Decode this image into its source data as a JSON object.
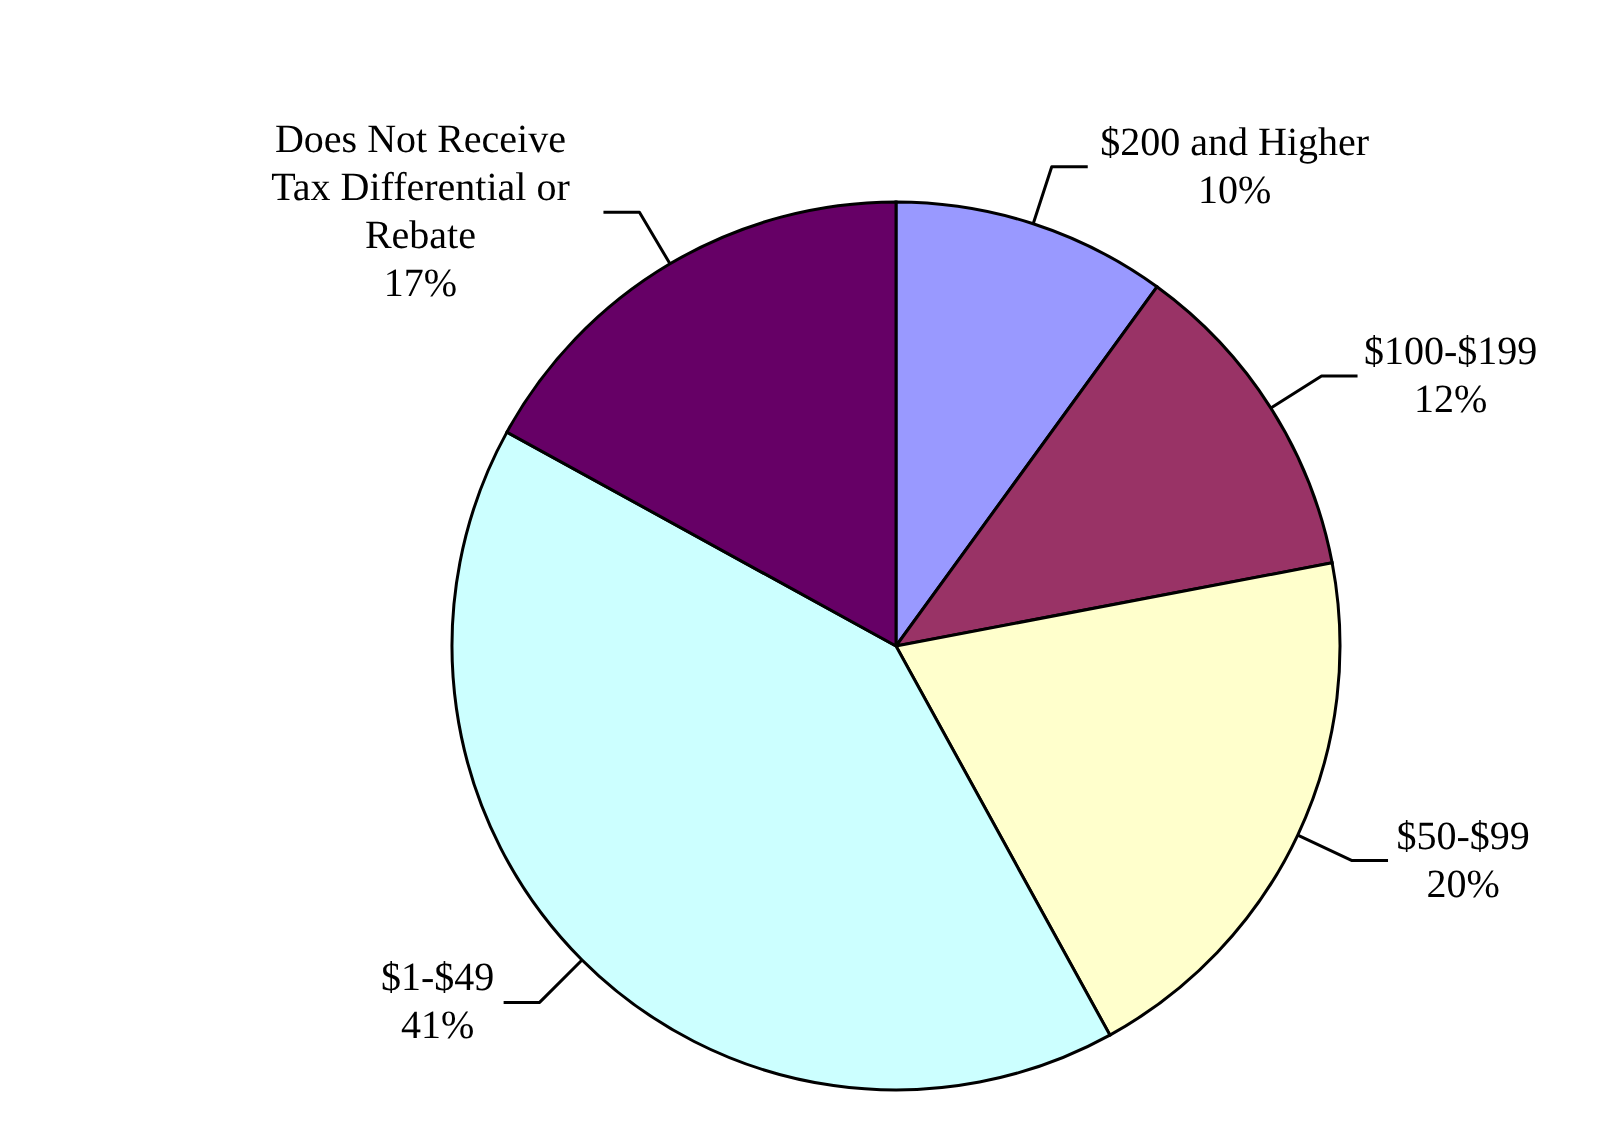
{
  "chart_data": {
    "type": "pie",
    "categories": [
      "$200 and Higher",
      "$100-$199",
      "$50-$99",
      "$1-$49",
      "Does Not Receive Tax Differential or Rebate"
    ],
    "values": [
      10,
      12,
      20,
      41,
      17
    ],
    "colors": [
      "#9999ff",
      "#993366",
      "#ffffcc",
      "#ccffff",
      "#660066"
    ],
    "value_labels": [
      "10%",
      "12%",
      "20%",
      "41%",
      "17%"
    ]
  }
}
